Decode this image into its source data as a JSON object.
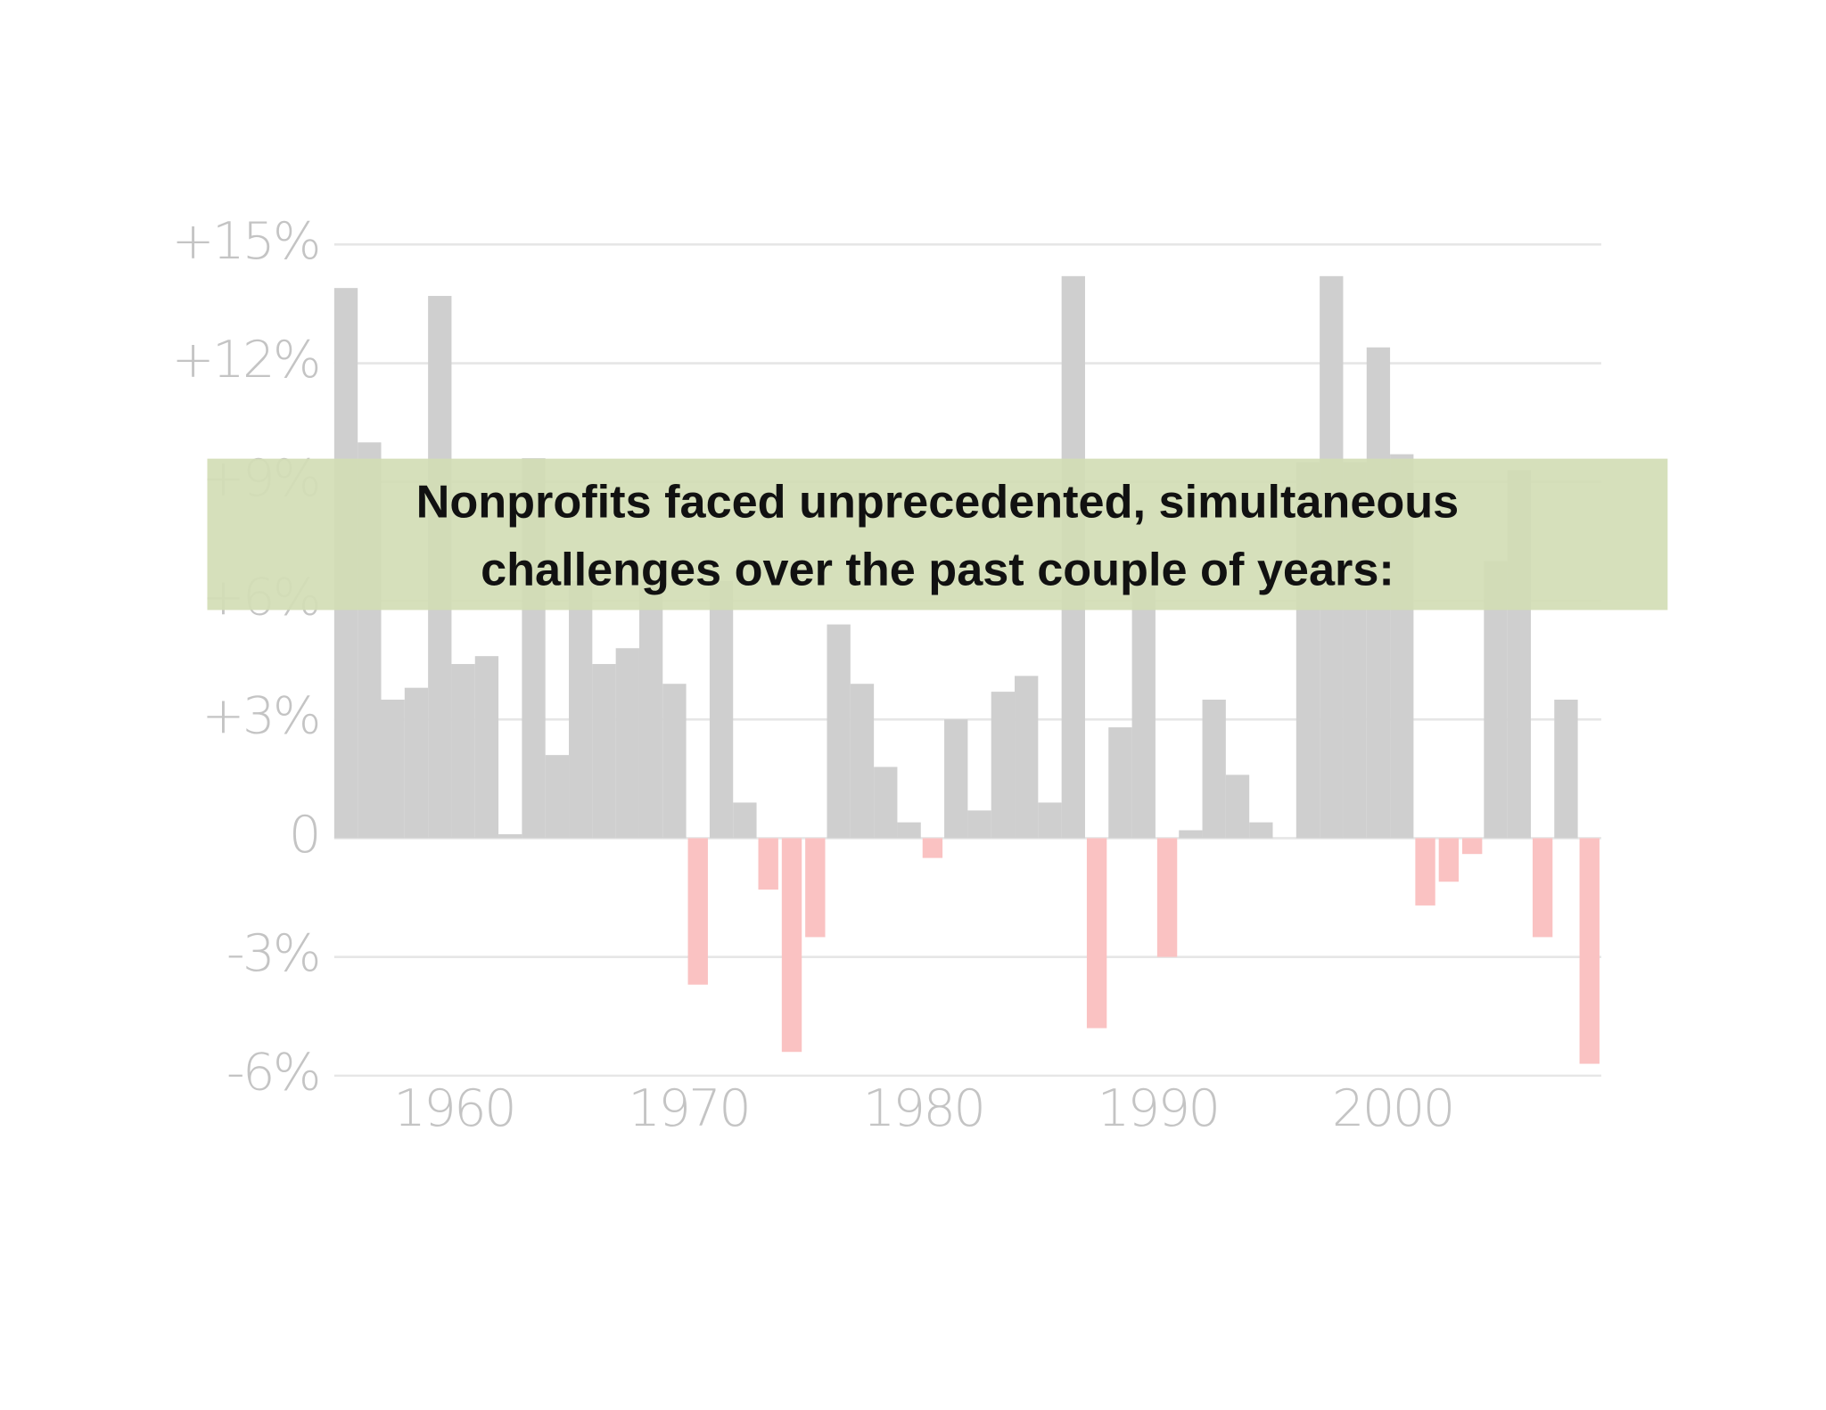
{
  "chart_data": {
    "type": "bar",
    "title": [
      "Nonprofits faced unprecedented, simultaneous",
      "challenges over the past couple of years:"
    ],
    "categories": [
      null,
      null,
      null,
      null,
      null,
      "1960",
      null,
      null,
      null,
      null,
      null,
      null,
      null,
      null,
      null,
      "1970",
      null,
      null,
      null,
      null,
      null,
      null,
      null,
      null,
      null,
      "1980",
      null,
      null,
      null,
      null,
      null,
      null,
      null,
      null,
      null,
      "1990",
      null,
      null,
      null,
      null,
      null,
      null,
      null,
      null,
      null,
      "2000",
      null,
      null,
      null,
      null,
      null,
      null,
      null,
      null
    ],
    "values": [
      13.9,
      10.0,
      3.5,
      3.8,
      13.7,
      4.4,
      4.6,
      0.1,
      9.6,
      2.1,
      6.5,
      4.4,
      4.8,
      6.5,
      3.9,
      -3.7,
      6.5,
      0.9,
      -1.3,
      -5.4,
      -2.5,
      5.4,
      3.9,
      1.8,
      0.4,
      -0.5,
      3.0,
      0.7,
      3.7,
      4.1,
      0.9,
      14.2,
      -4.8,
      2.8,
      6.5,
      -3.0,
      0.2,
      3.5,
      1.6,
      0.4,
      0,
      9.5,
      14.2,
      9.5,
      12.4,
      9.7,
      -1.7,
      -1.1,
      -0.4,
      7.0,
      9.3,
      -2.5,
      3.5,
      -5.7
    ],
    "color": "#cfcfcf",
    "negative_color": "#fac2c2",
    "ylim": [
      -6,
      15
    ],
    "yticks": [
      {
        "value": -6,
        "label": "-6%"
      },
      {
        "value": -3,
        "label": "-3%"
      },
      0,
      {
        "value": 3,
        "label": "+3%"
      },
      {
        "value": 6,
        "label": "+6%"
      },
      {
        "value": 9,
        "label": "+9%"
      },
      {
        "value": 12,
        "label": "+12%"
      },
      {
        "value": 15,
        "label": "+15%"
      }
    ],
    "grid": true
  }
}
